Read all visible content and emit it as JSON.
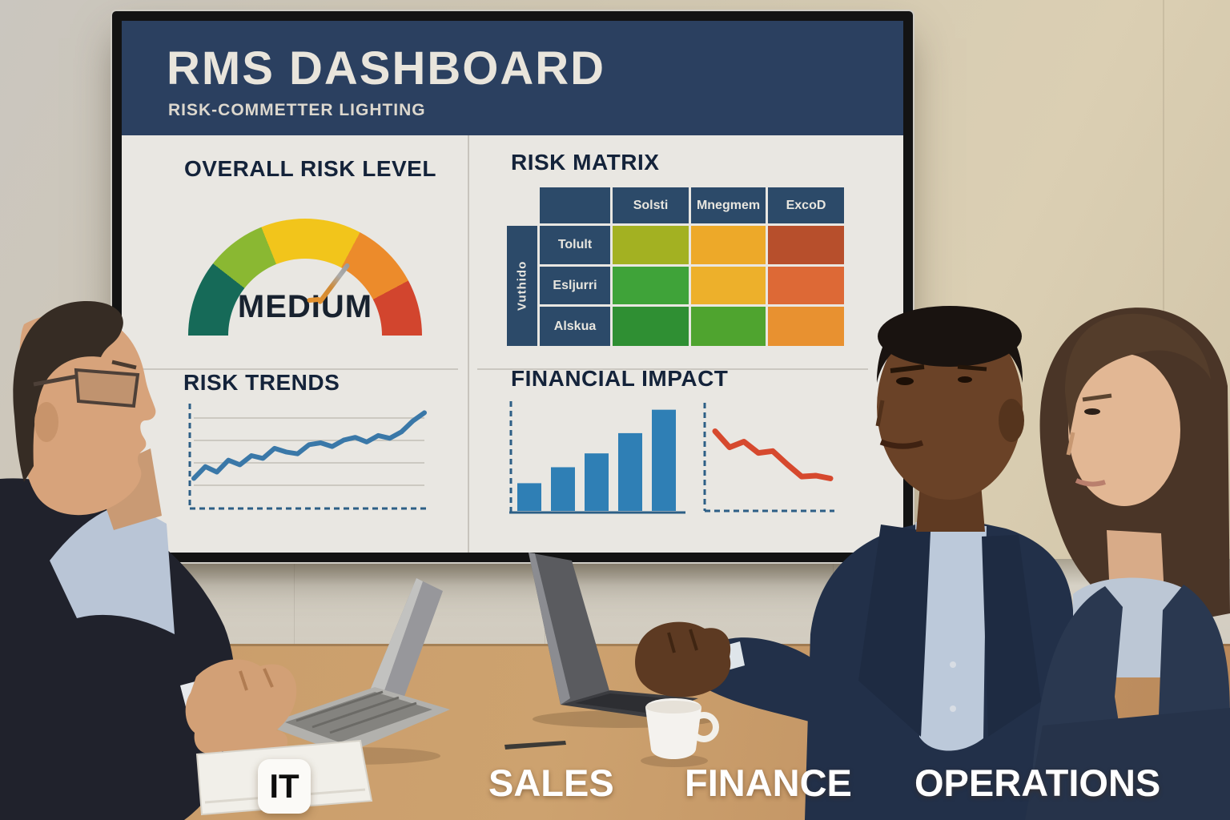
{
  "screen": {
    "title": "RMS DASHBOARD",
    "subtitle": "RISK-COMMETTER LIGHTING",
    "panels": {
      "gauge": {
        "title": "OVERALL RISK LEVEL",
        "value_label": "MEDIUM"
      },
      "matrix": {
        "title": "RISK MATRIX"
      },
      "trends": {
        "title": "RISK TRENDS"
      },
      "financial": {
        "title": "FINANCIAL IMPACT"
      }
    }
  },
  "table_labels": [
    {
      "label": "IT"
    },
    {
      "label": "SALES"
    },
    {
      "label": "FINANCE"
    },
    {
      "label": "OPERATIONS"
    }
  ],
  "colors": {
    "header_navy": "#2b4060",
    "matrix_navy": "#2c4a69",
    "dashboard_bg": "#e9e7e2",
    "trend_blue": "#3a78a8",
    "bar_blue": "#2f7fb5",
    "decline_red": "#d6492e"
  },
  "chart_data": [
    {
      "id": "overall_risk_gauge",
      "type": "gauge",
      "title": "OVERALL RISK LEVEL",
      "value_label": "MEDIUM",
      "needle_deg": 37,
      "segments": [
        {
          "name": "very-low",
          "color": "#166a58",
          "sweep": 38
        },
        {
          "name": "low",
          "color": "#8ab832",
          "sweep": 30
        },
        {
          "name": "medium",
          "color": "#f2c51b",
          "sweep": 50
        },
        {
          "name": "high",
          "color": "#ec8b2b",
          "sweep": 34
        },
        {
          "name": "critical",
          "color": "#d2452e",
          "sweep": 28
        }
      ]
    },
    {
      "id": "risk_matrix",
      "type": "heatmap",
      "title": "RISK MATRIX",
      "x_labels": [
        "Solsti",
        "Mnegmem",
        "ExcoD"
      ],
      "y_labels": [
        "Tolult",
        "Esljurri",
        "Alskua"
      ],
      "y_axis_label": "Vuthido",
      "cell_colors": [
        [
          "#a3b122",
          "#eda929",
          "#b74f2c"
        ],
        [
          "#3fa339",
          "#edb02b",
          "#dd6936"
        ],
        [
          "#2f8f33",
          "#4fa42f",
          "#e89130"
        ]
      ]
    },
    {
      "id": "risk_trends",
      "type": "line",
      "title": "RISK TRENDS",
      "trend": "up",
      "color": "#3a78a8",
      "ylim": [
        0,
        100
      ],
      "y": [
        25,
        38,
        32,
        45,
        40,
        50,
        47,
        58,
        54,
        52,
        62,
        64,
        60,
        67,
        70,
        65,
        72,
        69,
        76,
        88,
        97
      ]
    },
    {
      "id": "financial_impact_bars",
      "type": "bar",
      "title": "FINANCIAL IMPACT",
      "color": "#2f7fb5",
      "ylim": [
        0,
        100
      ],
      "values": [
        26,
        41,
        54,
        73,
        95
      ]
    },
    {
      "id": "financial_impact_line",
      "type": "line",
      "title": "FINANCIAL IMPACT",
      "trend": "down",
      "color": "#d6492e",
      "ylim": [
        0,
        100
      ],
      "y": [
        75,
        58,
        64,
        52,
        54,
        40,
        27,
        28,
        25
      ]
    }
  ]
}
